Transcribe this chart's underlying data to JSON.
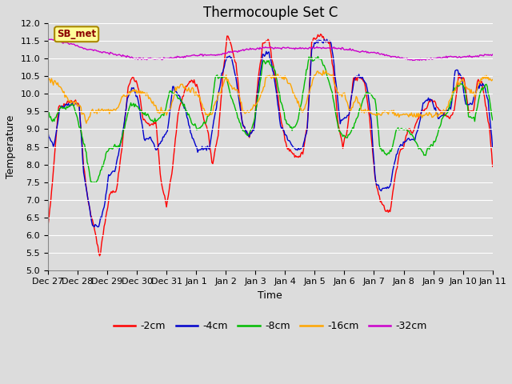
{
  "title": "Thermocouple Set C",
  "xlabel": "Time",
  "ylabel": "Temperature",
  "ylim": [
    5.0,
    12.0
  ],
  "yticks": [
    5.0,
    5.5,
    6.0,
    6.5,
    7.0,
    7.5,
    8.0,
    8.5,
    9.0,
    9.5,
    10.0,
    10.5,
    11.0,
    11.5,
    12.0
  ],
  "colors": {
    "-2cm": "#ff0000",
    "-4cm": "#0000cc",
    "-8cm": "#00bb00",
    "-16cm": "#ffa500",
    "-32cm": "#cc00cc"
  },
  "legend_labels": [
    "-2cm",
    "-4cm",
    "-8cm",
    "-16cm",
    "-32cm"
  ],
  "annotation": "SB_met",
  "bg_color": "#dcdcdc",
  "grid_color": "#ffffff",
  "title_fontsize": 12,
  "axis_fontsize": 9,
  "tick_fontsize": 8,
  "day_labels": [
    "Dec 27",
    "Dec 28",
    "Dec 29",
    "Dec 30",
    "Dec 31",
    "Jan 1",
    "Jan 2",
    "Jan 3",
    "Jan 4",
    "Jan 5",
    "Jan 6",
    "Jan 7",
    "Jan 8",
    "Jan 9",
    "Jan 10",
    "Jan 11"
  ]
}
